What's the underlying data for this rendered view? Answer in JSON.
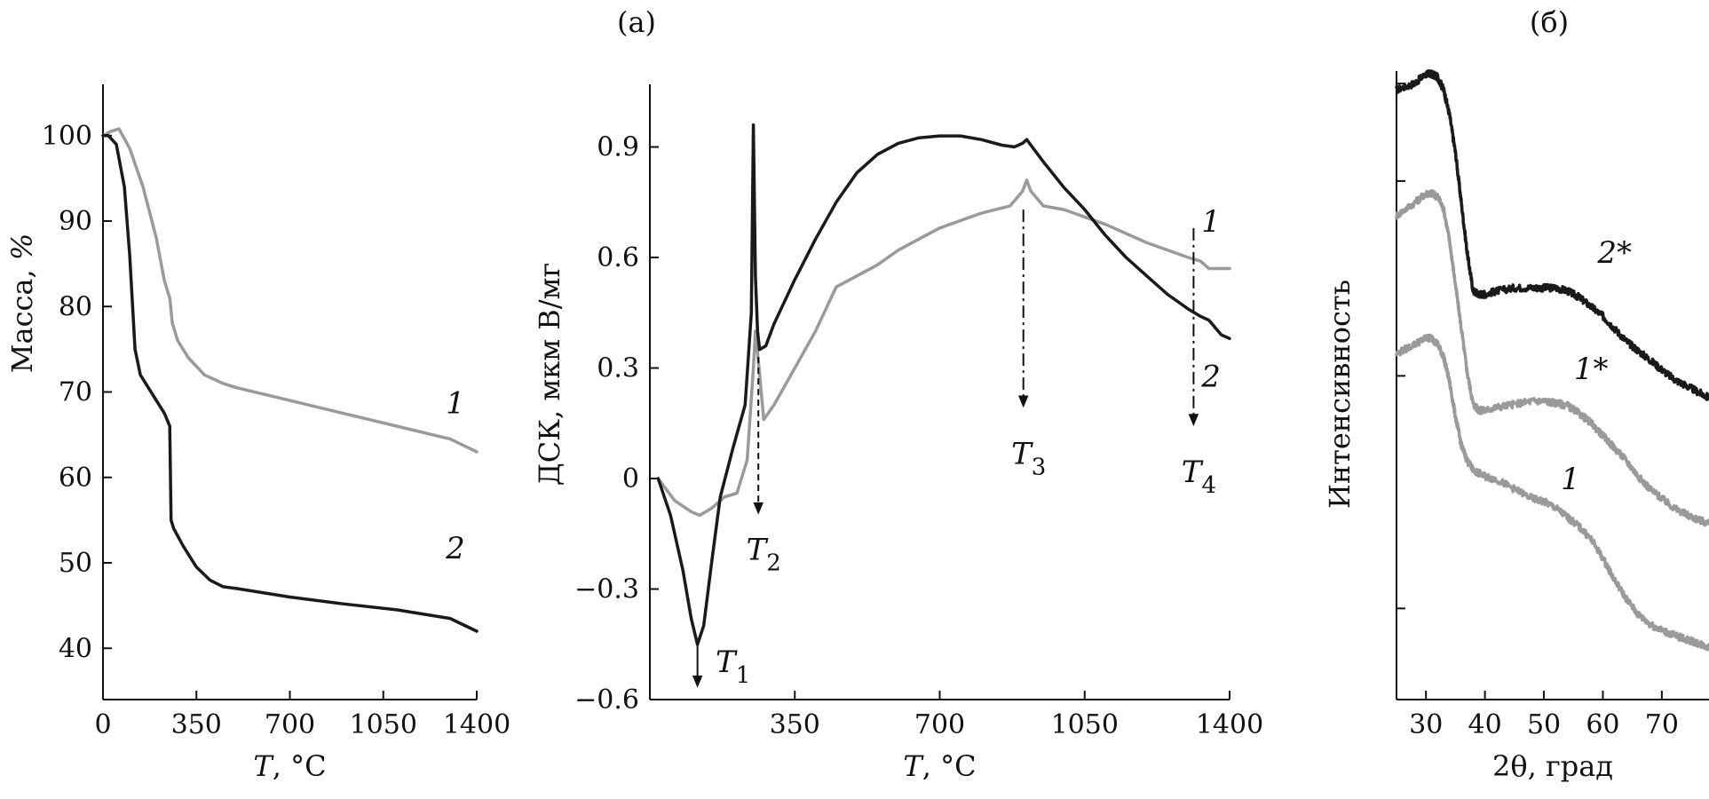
{
  "panel_labels": {
    "a": "(а)",
    "b": "(б)"
  },
  "chart_data": [
    {
      "type": "line",
      "id": "tga",
      "title": "",
      "xlabel_italic": "T",
      "xlabel_rest": ", °C",
      "ylabel_main": "Масса, ",
      "ylabel_italic": "%",
      "xlim": [
        0,
        1400
      ],
      "ylim": [
        34,
        106
      ],
      "xticks": [
        0,
        350,
        700,
        1050,
        1400
      ],
      "yticks": [
        40,
        50,
        60,
        70,
        80,
        90,
        100
      ],
      "series": [
        {
          "name": "1",
          "color": "#9a9a9a",
          "x": [
            0,
            30,
            60,
            100,
            150,
            200,
            230,
            250,
            260,
            280,
            320,
            380,
            450,
            500,
            700,
            900,
            1100,
            1300,
            1400
          ],
          "y": [
            100,
            100.5,
            100.8,
            98.5,
            94,
            88,
            83,
            81,
            78,
            76,
            74,
            72,
            71,
            70.5,
            69,
            67.5,
            66,
            64.5,
            63
          ]
        },
        {
          "name": "2",
          "color": "#1a1a1a",
          "x": [
            0,
            20,
            50,
            80,
            100,
            120,
            140,
            170,
            200,
            230,
            250,
            255,
            265,
            300,
            350,
            400,
            450,
            500,
            700,
            900,
            1100,
            1300,
            1400
          ],
          "y": [
            100,
            100,
            99,
            94,
            86,
            75,
            72,
            70.5,
            69,
            67.5,
            66,
            55,
            54,
            52,
            49.5,
            48,
            47.2,
            47,
            46,
            45.2,
            44.5,
            43.5,
            42
          ]
        }
      ],
      "annotations": [
        {
          "text": "1",
          "x": 1320,
          "y": 67.5
        },
        {
          "text": "2",
          "x": 1320,
          "y": 50.5
        }
      ]
    },
    {
      "type": "line",
      "id": "dsc",
      "title": "",
      "xlabel_italic": "T",
      "xlabel_rest": ", °C",
      "ylabel": "ДСК, мкм В/мг",
      "xlim": [
        0,
        1400
      ],
      "ylim": [
        -0.6,
        1.07
      ],
      "xticks": [
        350,
        700,
        1050,
        1400
      ],
      "yticks": [
        -0.6,
        -0.3,
        0,
        0.3,
        0.6,
        0.9
      ],
      "ytick_labels": [
        "−0.6",
        "−0.3",
        "0",
        "0.3",
        "0.6",
        "0.9"
      ],
      "series": [
        {
          "name": "1",
          "color": "#9a9a9a",
          "x": [
            20,
            60,
            100,
            120,
            150,
            180,
            210,
            235,
            250,
            255,
            262,
            275,
            300,
            350,
            400,
            450,
            500,
            550,
            600,
            700,
            800,
            870,
            900,
            910,
            920,
            950,
            1000,
            1100,
            1200,
            1300,
            1330,
            1350,
            1400
          ],
          "y": [
            0,
            -0.06,
            -0.09,
            -0.1,
            -0.08,
            -0.05,
            -0.04,
            0.05,
            0.3,
            0.4,
            0.32,
            0.16,
            0.2,
            0.3,
            0.4,
            0.52,
            0.55,
            0.58,
            0.62,
            0.68,
            0.72,
            0.74,
            0.78,
            0.81,
            0.78,
            0.74,
            0.73,
            0.69,
            0.64,
            0.6,
            0.59,
            0.57,
            0.57
          ]
        },
        {
          "name": "2",
          "color": "#1a1a1a",
          "x": [
            20,
            50,
            80,
            100,
            115,
            130,
            150,
            170,
            200,
            230,
            245,
            250,
            255,
            260,
            265,
            280,
            300,
            350,
            400,
            450,
            500,
            550,
            600,
            650,
            700,
            750,
            800,
            850,
            880,
            900,
            910,
            930,
            950,
            1000,
            1050,
            1100,
            1150,
            1200,
            1250,
            1300,
            1330,
            1350,
            1380,
            1400
          ],
          "y": [
            0,
            -0.1,
            -0.25,
            -0.38,
            -0.45,
            -0.4,
            -0.22,
            -0.05,
            0.08,
            0.2,
            0.45,
            0.96,
            0.55,
            0.4,
            0.35,
            0.36,
            0.42,
            0.54,
            0.65,
            0.75,
            0.83,
            0.88,
            0.91,
            0.925,
            0.93,
            0.93,
            0.92,
            0.905,
            0.9,
            0.91,
            0.92,
            0.89,
            0.86,
            0.79,
            0.73,
            0.66,
            0.6,
            0.55,
            0.5,
            0.46,
            0.44,
            0.43,
            0.39,
            0.38
          ]
        }
      ],
      "annotations": [
        {
          "text": "1",
          "x": 1355,
          "y": 0.67
        },
        {
          "text": "2",
          "x": 1355,
          "y": 0.25
        }
      ],
      "markers": [
        {
          "label_italic": "T",
          "label_sub": "1",
          "x": 115,
          "y_from": -0.45,
          "y_to": -0.56,
          "style": "solid",
          "label_y": -0.525,
          "label_dx": 1
        },
        {
          "label_italic": "T",
          "label_sub": "2",
          "x": 262,
          "y_from": 0.33,
          "y_to": -0.09,
          "style": "dashed",
          "label_y": -0.22,
          "label_dx": 0
        },
        {
          "label_italic": "T",
          "label_sub": "3",
          "x": 902,
          "y_from": 0.73,
          "y_to": 0.2,
          "style": "dashdot",
          "label_y": 0.04,
          "label_dx": 0
        },
        {
          "label_italic": "T",
          "label_sub": "4",
          "x": 1313,
          "y_from": 0.68,
          "y_to": 0.15,
          "style": "dashdot",
          "label_y": -0.01,
          "label_dx": 0
        }
      ]
    },
    {
      "type": "line",
      "id": "xrd",
      "title": "",
      "xlabel": "2θ, град",
      "ylabel": "Интенсивность",
      "xlim": [
        25,
        78
      ],
      "ylim": [
        0,
        100
      ],
      "xticks": [
        30,
        40,
        50,
        60,
        70
      ],
      "yticks_unlabeled": [
        14.5,
        51.5,
        82.5,
        98
      ],
      "series": [
        {
          "name": "2*",
          "color": "#1a1a1a",
          "x": [
            25,
            28,
            30,
            31,
            32,
            33,
            34,
            35,
            36,
            37,
            38,
            39,
            40,
            42,
            45,
            48,
            50,
            52,
            54,
            56,
            58,
            60,
            62,
            64,
            66,
            68,
            70,
            72,
            74,
            76,
            78
          ],
          "y": [
            97,
            98,
            99.5,
            99.5,
            99,
            97,
            93,
            87,
            79,
            71,
            65,
            64.5,
            64.5,
            65,
            65.5,
            65.5,
            65.5,
            65.5,
            65,
            64,
            62.5,
            61,
            59,
            57,
            55.5,
            54,
            52.5,
            51,
            50,
            49,
            48
          ]
        },
        {
          "name": "1*",
          "color": "#9a9a9a",
          "x": [
            25,
            28,
            30,
            31,
            32,
            33,
            34,
            35,
            36,
            37,
            38,
            39,
            40,
            42,
            45,
            48,
            50,
            52,
            54,
            56,
            58,
            60,
            62,
            64,
            66,
            68,
            70,
            72,
            74,
            76,
            78
          ],
          "y": [
            77,
            79,
            80.5,
            80.5,
            80,
            78,
            73,
            66,
            59,
            52,
            47,
            46,
            46,
            46.5,
            47,
            47.5,
            47.5,
            47.2,
            46.8,
            45.5,
            44,
            42,
            40,
            38,
            35.5,
            33.5,
            32,
            30.5,
            29.5,
            28.7,
            28
          ]
        },
        {
          "name": "1",
          "color": "#9a9a9a",
          "x": [
            25,
            28,
            30,
            31,
            32,
            33,
            34,
            35,
            36,
            37,
            38,
            40,
            42,
            45,
            48,
            50,
            52,
            54,
            56,
            58,
            60,
            62,
            64,
            66,
            68,
            70,
            72,
            74,
            76,
            78
          ],
          "y": [
            55,
            56.5,
            57.5,
            57.5,
            56.5,
            54.5,
            50.5,
            45,
            40.5,
            38,
            36.5,
            35.5,
            35,
            33.5,
            32,
            31.5,
            30.5,
            29,
            27.5,
            25.5,
            22.5,
            19,
            16,
            13.5,
            12,
            11,
            10.3,
            9.6,
            9,
            8.3
          ]
        }
      ],
      "annotations": [
        {
          "text": "2*",
          "x": 62,
          "y": 69.5
        },
        {
          "text": "1*",
          "x": 58,
          "y": 51
        },
        {
          "text": "1",
          "x": 54.5,
          "y": 33.5
        }
      ]
    }
  ]
}
